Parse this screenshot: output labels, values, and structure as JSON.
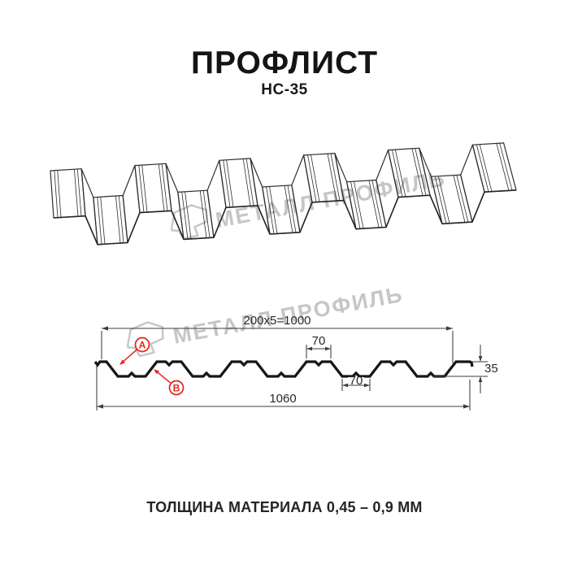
{
  "header": {
    "title": "ПРОФЛИСТ",
    "subtitle": "НС-35"
  },
  "watermark": {
    "brand": "МЕТАЛЛ ПРОФИЛЬ",
    "color": "#c6c6c6"
  },
  "cross_section": {
    "dim_top_total": "200x5=1000",
    "dim_crest_width": "70",
    "dim_valley_width": "70",
    "dim_overall_width": "1060",
    "dim_height": "35",
    "markers": [
      {
        "label": "A"
      },
      {
        "label": "B"
      }
    ],
    "marker_color": "#e42320"
  },
  "footer": {
    "thickness_note": "ТОЛЩИНА МАТЕРИАЛА 0,45 – 0,9 ММ"
  }
}
